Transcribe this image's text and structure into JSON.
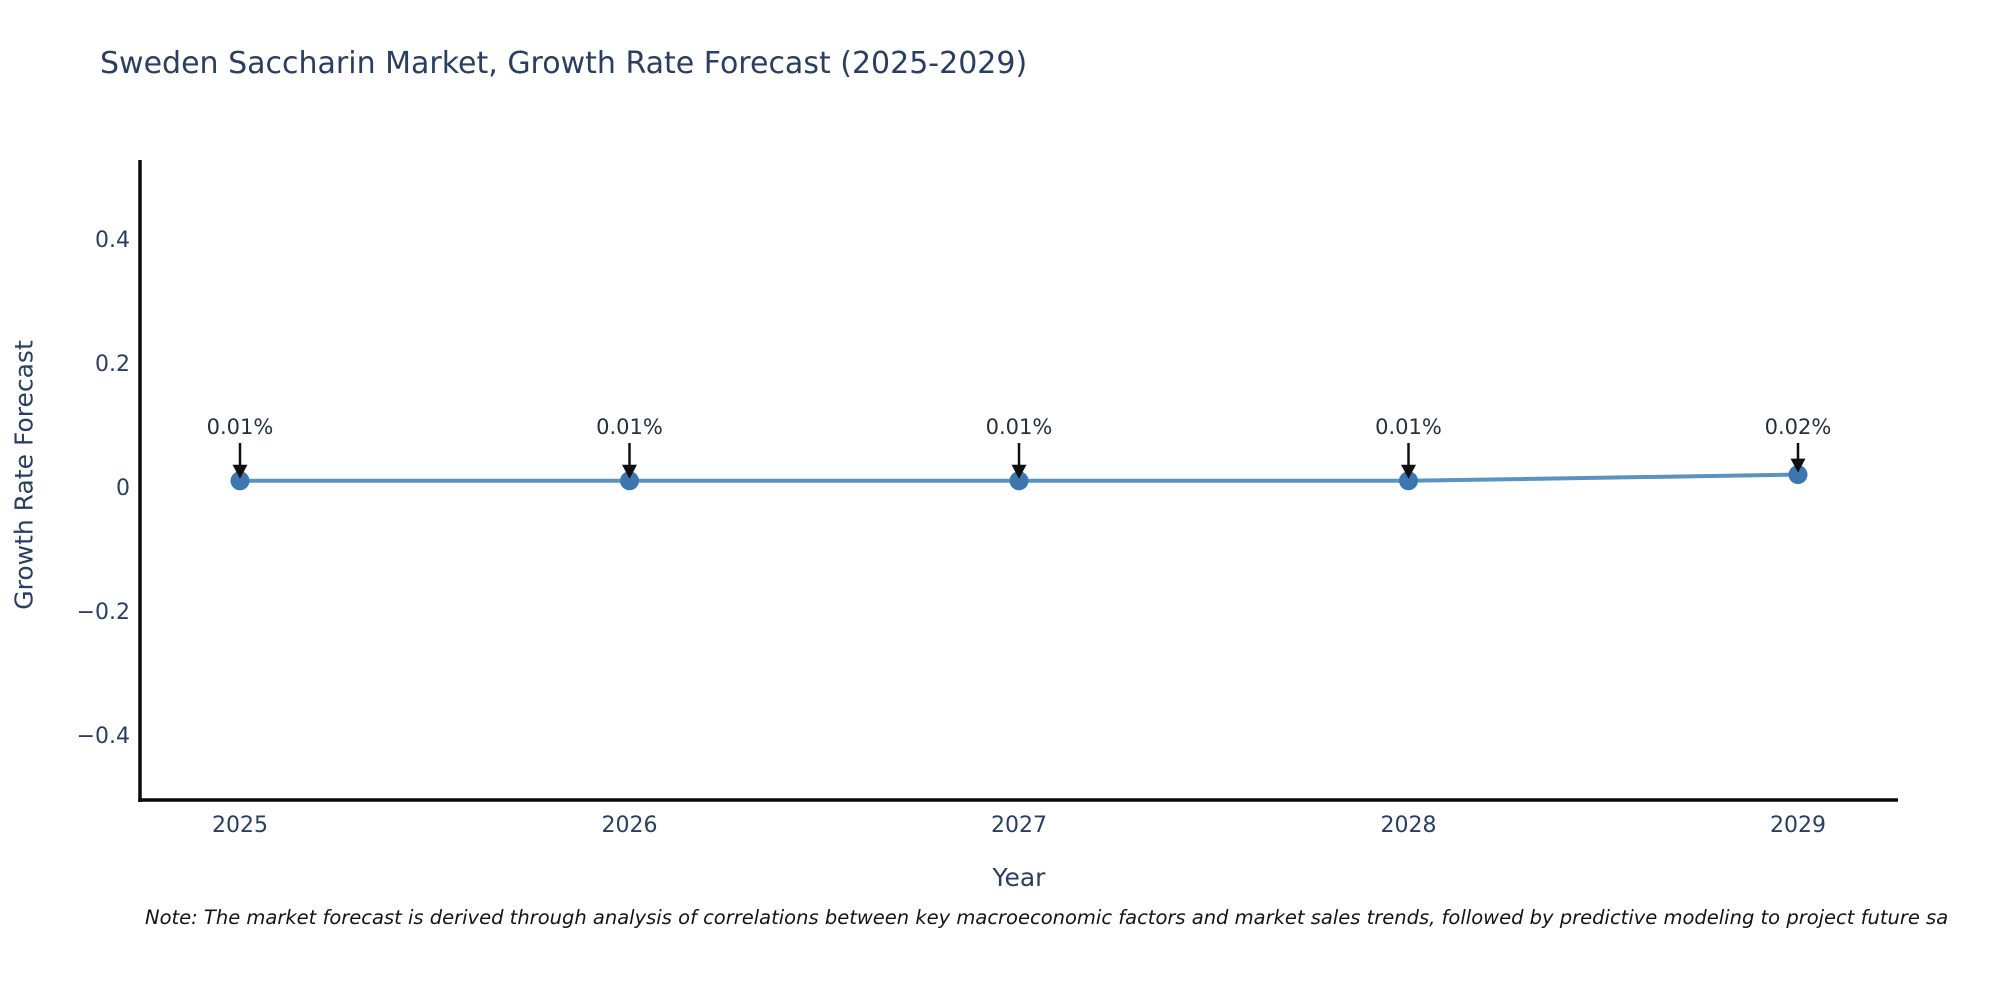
{
  "chart": {
    "note": "Note: The market forecast is derived through analysis of correlations between key macroeconomic factors and market sales trends, followed by predictive modeling to project future sa"
  },
  "chart_data": {
    "type": "line",
    "title": "Sweden Saccharin Market, Growth Rate Forecast (2025-2029)",
    "xlabel": "Year",
    "ylabel": "Growth Rate Forecast",
    "categories": [
      "2025",
      "2026",
      "2027",
      "2028",
      "2029"
    ],
    "values": [
      0.01,
      0.01,
      0.01,
      0.01,
      0.02
    ],
    "point_labels": [
      "0.01%",
      "0.01%",
      "0.01%",
      "0.01%",
      "0.02%"
    ],
    "ytick_labels": [
      "0.4",
      "0.2",
      "0",
      "−0.2",
      "−0.4"
    ],
    "ytick_values": [
      0.4,
      0.2,
      0,
      -0.2,
      -0.4
    ],
    "ylim": [
      -0.5,
      0.53
    ],
    "grid": false,
    "legend": null,
    "annotation_arrows": true,
    "colors": {
      "line": "#5a92c0",
      "marker": "#3b77ae",
      "axis": "#0b0b0b",
      "label_text": "#2a3f5f",
      "annotation_text": "#25303f",
      "arrow": "#111111"
    }
  }
}
